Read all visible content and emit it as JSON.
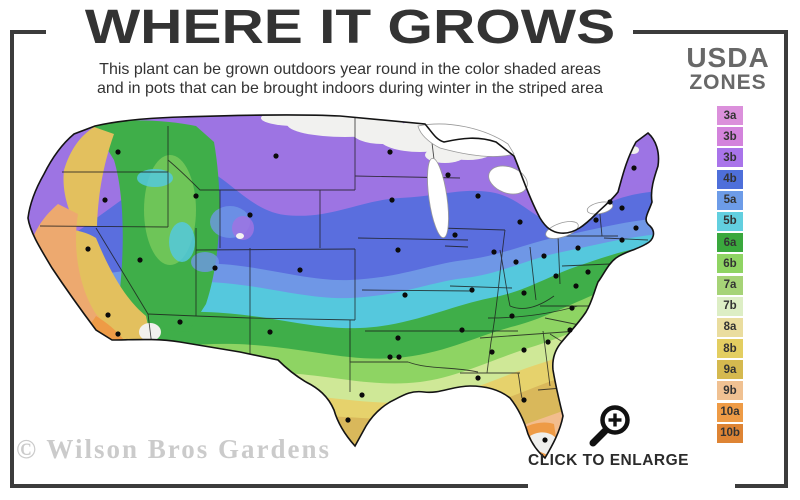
{
  "header": {
    "title": "WHERE IT GROWS",
    "subtitle_line1": "This plant can be grown outdoors year round in the color shaded areas",
    "subtitle_line2": "and in pots that can be brought indoors during winter in the striped area"
  },
  "legend": {
    "title_top": "USDA",
    "title_bottom": "ZONES",
    "zones": [
      {
        "label": "3a",
        "color": "#DB90DB"
      },
      {
        "label": "3b",
        "color": "#D383DC"
      },
      {
        "label": "3b",
        "color": "#A974EA"
      },
      {
        "label": "4b",
        "color": "#4E6FDA"
      },
      {
        "label": "5a",
        "color": "#6D9CE8"
      },
      {
        "label": "5b",
        "color": "#62CFDF"
      },
      {
        "label": "6a",
        "color": "#3AA83D"
      },
      {
        "label": "6b",
        "color": "#8FD463"
      },
      {
        "label": "7a",
        "color": "#A6D377"
      },
      {
        "label": "7b",
        "color": "#DDEEC5"
      },
      {
        "label": "8a",
        "color": "#EADD9F"
      },
      {
        "label": "8b",
        "color": "#E3CE61"
      },
      {
        "label": "9a",
        "color": "#D5B94F"
      },
      {
        "label": "9b",
        "color": "#F0C192"
      },
      {
        "label": "10a",
        "color": "#EE9B46"
      },
      {
        "label": "10b",
        "color": "#DE8434"
      }
    ]
  },
  "footer": {
    "watermark": "© Wilson Bros Gardens",
    "enlarge_label": "CLICK TO ENLARGE"
  }
}
